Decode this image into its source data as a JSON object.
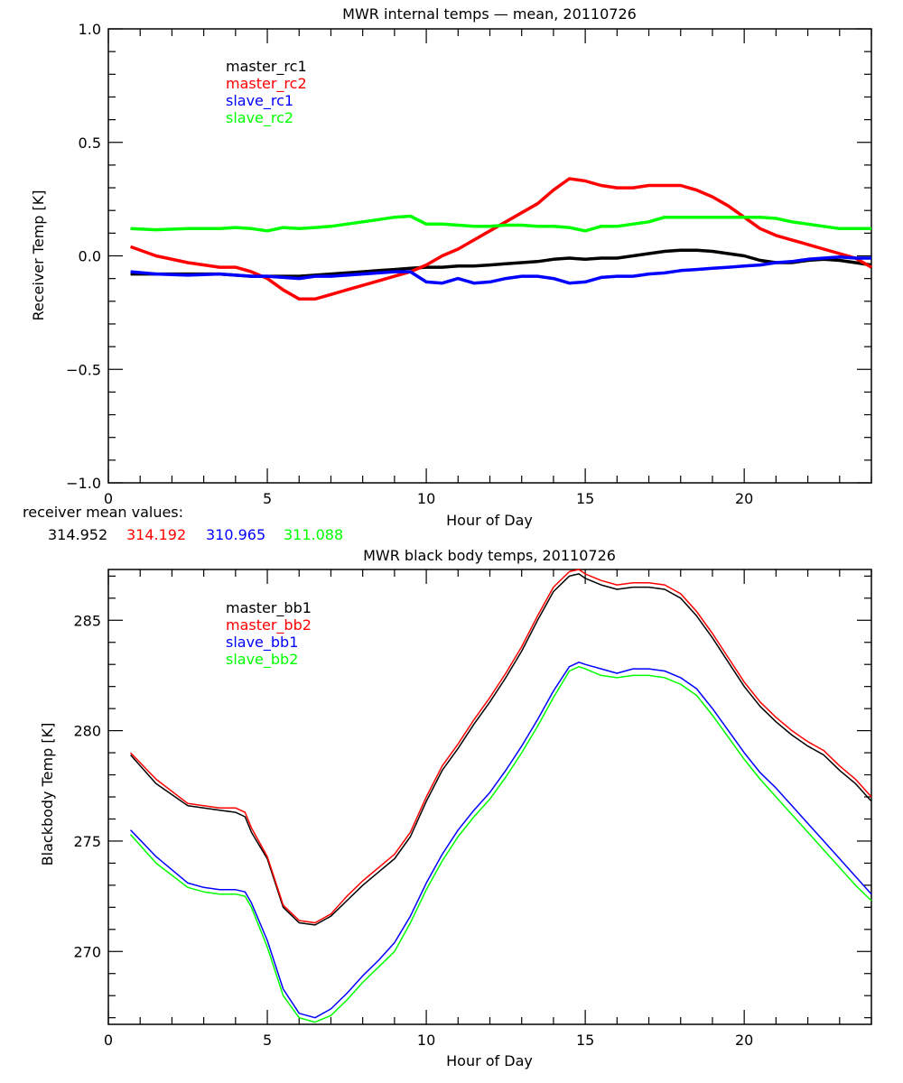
{
  "chart_data": [
    {
      "type": "line",
      "title": "MWR internal temps — mean, 20110726",
      "xlabel": "Hour of Day",
      "ylabel": "Receiver Temp [K]",
      "xlim": [
        0,
        24
      ],
      "ylim": [
        -1.0,
        1.0
      ],
      "xticks": [
        0,
        5,
        10,
        15,
        20
      ],
      "xtick_labels": [
        "0",
        "5",
        "10",
        "15",
        "20"
      ],
      "yticks": [
        -1.0,
        -0.5,
        0.0,
        0.5,
        1.0
      ],
      "ytick_labels": [
        "−1.0",
        "−0.5",
        "0.0",
        "0.5",
        "1.0"
      ],
      "legend_placement": "top-left",
      "x": [
        0.7,
        1.5,
        2.5,
        3.5,
        4.0,
        4.5,
        5.0,
        5.5,
        6.0,
        6.5,
        7.0,
        7.5,
        8.0,
        8.5,
        9.0,
        9.5,
        10.0,
        10.5,
        11.0,
        11.5,
        12.0,
        12.5,
        13.0,
        13.5,
        14.0,
        14.5,
        15.0,
        15.5,
        16.0,
        16.5,
        17.0,
        17.5,
        18.0,
        18.5,
        19.0,
        19.5,
        20.0,
        20.5,
        21.0,
        21.5,
        22.0,
        22.5,
        23.0,
        23.5,
        24.0
      ],
      "series": [
        {
          "name": "master_rc1",
          "color": "#000000",
          "values": [
            -0.08,
            -0.08,
            -0.08,
            -0.08,
            -0.085,
            -0.09,
            -0.09,
            -0.09,
            -0.09,
            -0.085,
            -0.08,
            -0.075,
            -0.07,
            -0.065,
            -0.06,
            -0.055,
            -0.05,
            -0.05,
            -0.045,
            -0.045,
            -0.04,
            -0.035,
            -0.03,
            -0.025,
            -0.015,
            -0.01,
            -0.015,
            -0.01,
            -0.01,
            0.0,
            0.01,
            0.02,
            0.025,
            0.025,
            0.02,
            0.01,
            0.0,
            -0.02,
            -0.03,
            -0.03,
            -0.02,
            -0.015,
            -0.02,
            -0.03,
            -0.04
          ]
        },
        {
          "name": "master_rc2",
          "color": "#ff0000",
          "values": [
            0.04,
            0.0,
            -0.03,
            -0.05,
            -0.05,
            -0.07,
            -0.1,
            -0.15,
            -0.19,
            -0.19,
            -0.17,
            -0.15,
            -0.13,
            -0.11,
            -0.09,
            -0.07,
            -0.04,
            0.0,
            0.03,
            0.07,
            0.11,
            0.15,
            0.19,
            0.23,
            0.29,
            0.34,
            0.33,
            0.31,
            0.3,
            0.3,
            0.31,
            0.31,
            0.31,
            0.29,
            0.26,
            0.22,
            0.17,
            0.12,
            0.09,
            0.07,
            0.05,
            0.03,
            0.01,
            -0.01,
            -0.05
          ]
        },
        {
          "name": "slave_rc1",
          "color": "#0000ff",
          "values": [
            -0.07,
            -0.08,
            -0.085,
            -0.08,
            -0.085,
            -0.09,
            -0.09,
            -0.095,
            -0.1,
            -0.09,
            -0.09,
            -0.085,
            -0.08,
            -0.075,
            -0.07,
            -0.07,
            -0.115,
            -0.12,
            -0.1,
            -0.12,
            -0.115,
            -0.1,
            -0.09,
            -0.09,
            -0.1,
            -0.12,
            -0.115,
            -0.095,
            -0.09,
            -0.09,
            -0.08,
            -0.075,
            -0.065,
            -0.06,
            -0.055,
            -0.05,
            -0.045,
            -0.04,
            -0.03,
            -0.025,
            -0.015,
            -0.01,
            -0.005,
            -0.01,
            -0.01
          ]
        },
        {
          "name": "slave_rc2",
          "color": "#00ff00",
          "values": [
            0.12,
            0.115,
            0.12,
            0.12,
            0.125,
            0.12,
            0.11,
            0.125,
            0.12,
            0.125,
            0.13,
            0.14,
            0.15,
            0.16,
            0.17,
            0.175,
            0.14,
            0.14,
            0.135,
            0.13,
            0.13,
            0.135,
            0.135,
            0.13,
            0.13,
            0.125,
            0.11,
            0.13,
            0.13,
            0.14,
            0.15,
            0.17,
            0.17,
            0.17,
            0.17,
            0.17,
            0.17,
            0.17,
            0.165,
            0.15,
            0.14,
            0.13,
            0.12,
            0.12,
            0.12
          ]
        }
      ],
      "annotation": {
        "label": "receiver mean values:",
        "values": [
          {
            "text": "314.952",
            "color": "#000000"
          },
          {
            "text": "314.192",
            "color": "#ff0000"
          },
          {
            "text": "310.965",
            "color": "#0000ff"
          },
          {
            "text": "311.088",
            "color": "#00ff00"
          }
        ]
      }
    },
    {
      "type": "line",
      "title": "MWR black body temps, 20110726",
      "xlabel": "Hour of Day",
      "ylabel": "Blackbody Temp [K]",
      "xlim": [
        0,
        24
      ],
      "ylim": [
        266.7,
        287.3
      ],
      "xticks": [
        0,
        5,
        10,
        15,
        20
      ],
      "xtick_labels": [
        "0",
        "5",
        "10",
        "15",
        "20"
      ],
      "yticks": [
        270,
        275,
        280,
        285
      ],
      "ytick_labels": [
        "270",
        "275",
        "280",
        "285"
      ],
      "legend_placement": "top-left",
      "x": [
        0.7,
        1.5,
        2.5,
        3.0,
        3.5,
        4.0,
        4.3,
        4.5,
        5.0,
        5.5,
        6.0,
        6.5,
        7.0,
        7.5,
        8.0,
        8.5,
        9.0,
        9.5,
        10.0,
        10.5,
        11.0,
        11.5,
        12.0,
        12.5,
        13.0,
        13.5,
        14.0,
        14.5,
        14.8,
        15.0,
        15.5,
        16.0,
        16.5,
        17.0,
        17.5,
        18.0,
        18.5,
        19.0,
        19.5,
        20.0,
        20.5,
        21.0,
        21.5,
        22.0,
        22.5,
        23.0,
        23.5,
        24.0
      ],
      "series": [
        {
          "name": "master_bb1",
          "color": "#000000",
          "values": [
            278.9,
            277.6,
            276.6,
            276.5,
            276.4,
            276.3,
            276.1,
            275.4,
            274.2,
            272.0,
            271.3,
            271.2,
            271.6,
            272.3,
            273.0,
            273.6,
            274.2,
            275.2,
            276.8,
            278.2,
            279.2,
            280.3,
            281.3,
            282.4,
            283.6,
            285.0,
            286.3,
            287.0,
            287.1,
            286.9,
            286.6,
            286.4,
            286.5,
            286.5,
            286.4,
            286.0,
            285.2,
            284.2,
            283.1,
            282.0,
            281.1,
            280.4,
            279.8,
            279.3,
            278.9,
            278.2,
            277.6,
            276.8
          ]
        },
        {
          "name": "master_bb2",
          "color": "#ff0000",
          "values": [
            279.0,
            277.8,
            276.7,
            276.6,
            276.5,
            276.5,
            276.3,
            275.6,
            274.3,
            272.1,
            271.4,
            271.3,
            271.7,
            272.5,
            273.2,
            273.8,
            274.4,
            275.4,
            277.0,
            278.4,
            279.4,
            280.5,
            281.5,
            282.6,
            283.8,
            285.2,
            286.5,
            287.2,
            287.3,
            287.1,
            286.8,
            286.6,
            286.7,
            286.7,
            286.6,
            286.2,
            285.4,
            284.4,
            283.3,
            282.2,
            281.3,
            280.6,
            280.0,
            279.5,
            279.1,
            278.4,
            277.8,
            277.0
          ]
        },
        {
          "name": "slave_bb1",
          "color": "#0000ff",
          "values": [
            275.5,
            274.3,
            273.1,
            272.9,
            272.8,
            272.8,
            272.7,
            272.2,
            270.5,
            268.3,
            267.2,
            267.0,
            267.4,
            268.1,
            268.9,
            269.6,
            270.4,
            271.6,
            273.1,
            274.4,
            275.5,
            276.4,
            277.2,
            278.2,
            279.3,
            280.5,
            281.8,
            282.9,
            283.1,
            283.0,
            282.8,
            282.6,
            282.8,
            282.8,
            282.7,
            282.4,
            281.9,
            281.0,
            280.0,
            279.0,
            278.1,
            277.4,
            276.6,
            275.8,
            275.0,
            274.2,
            273.4,
            272.6
          ]
        },
        {
          "name": "slave_bb2",
          "color": "#00ff00",
          "values": [
            275.3,
            274.0,
            272.9,
            272.7,
            272.6,
            272.6,
            272.5,
            272.0,
            270.2,
            268.0,
            267.0,
            266.8,
            267.1,
            267.8,
            268.6,
            269.3,
            270.0,
            271.3,
            272.8,
            274.1,
            275.2,
            276.1,
            276.9,
            277.9,
            279.0,
            280.2,
            281.5,
            282.7,
            282.9,
            282.8,
            282.5,
            282.4,
            282.5,
            282.5,
            282.4,
            282.1,
            281.6,
            280.7,
            279.7,
            278.7,
            277.8,
            277.0,
            276.2,
            275.4,
            274.6,
            273.8,
            273.0,
            272.3
          ]
        }
      ]
    }
  ]
}
